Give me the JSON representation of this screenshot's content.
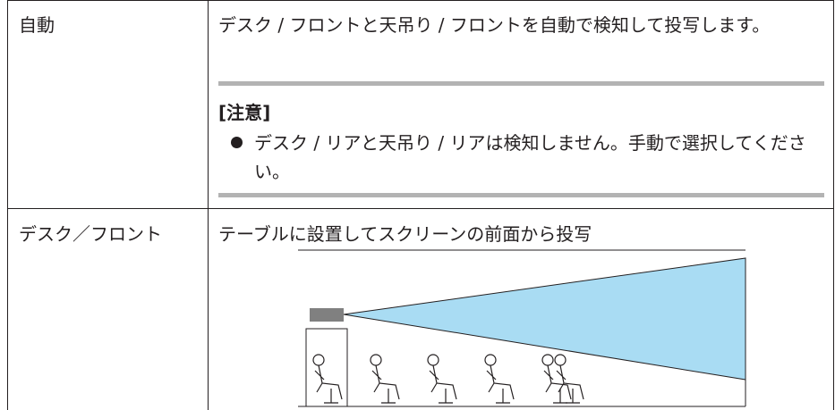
{
  "table": {
    "rows": [
      {
        "label": "自動",
        "description": "デスク / フロントと天吊り / フロントを自動で検知して投写します。",
        "note": {
          "title": "[注意]",
          "items": [
            "デスク / リアと天吊り / リアは検知しません。手動で選択してください。"
          ]
        }
      },
      {
        "label": "デスク／フロント",
        "description": "テーブルに設置してスクリーンの前面から投写"
      }
    ]
  }
}
